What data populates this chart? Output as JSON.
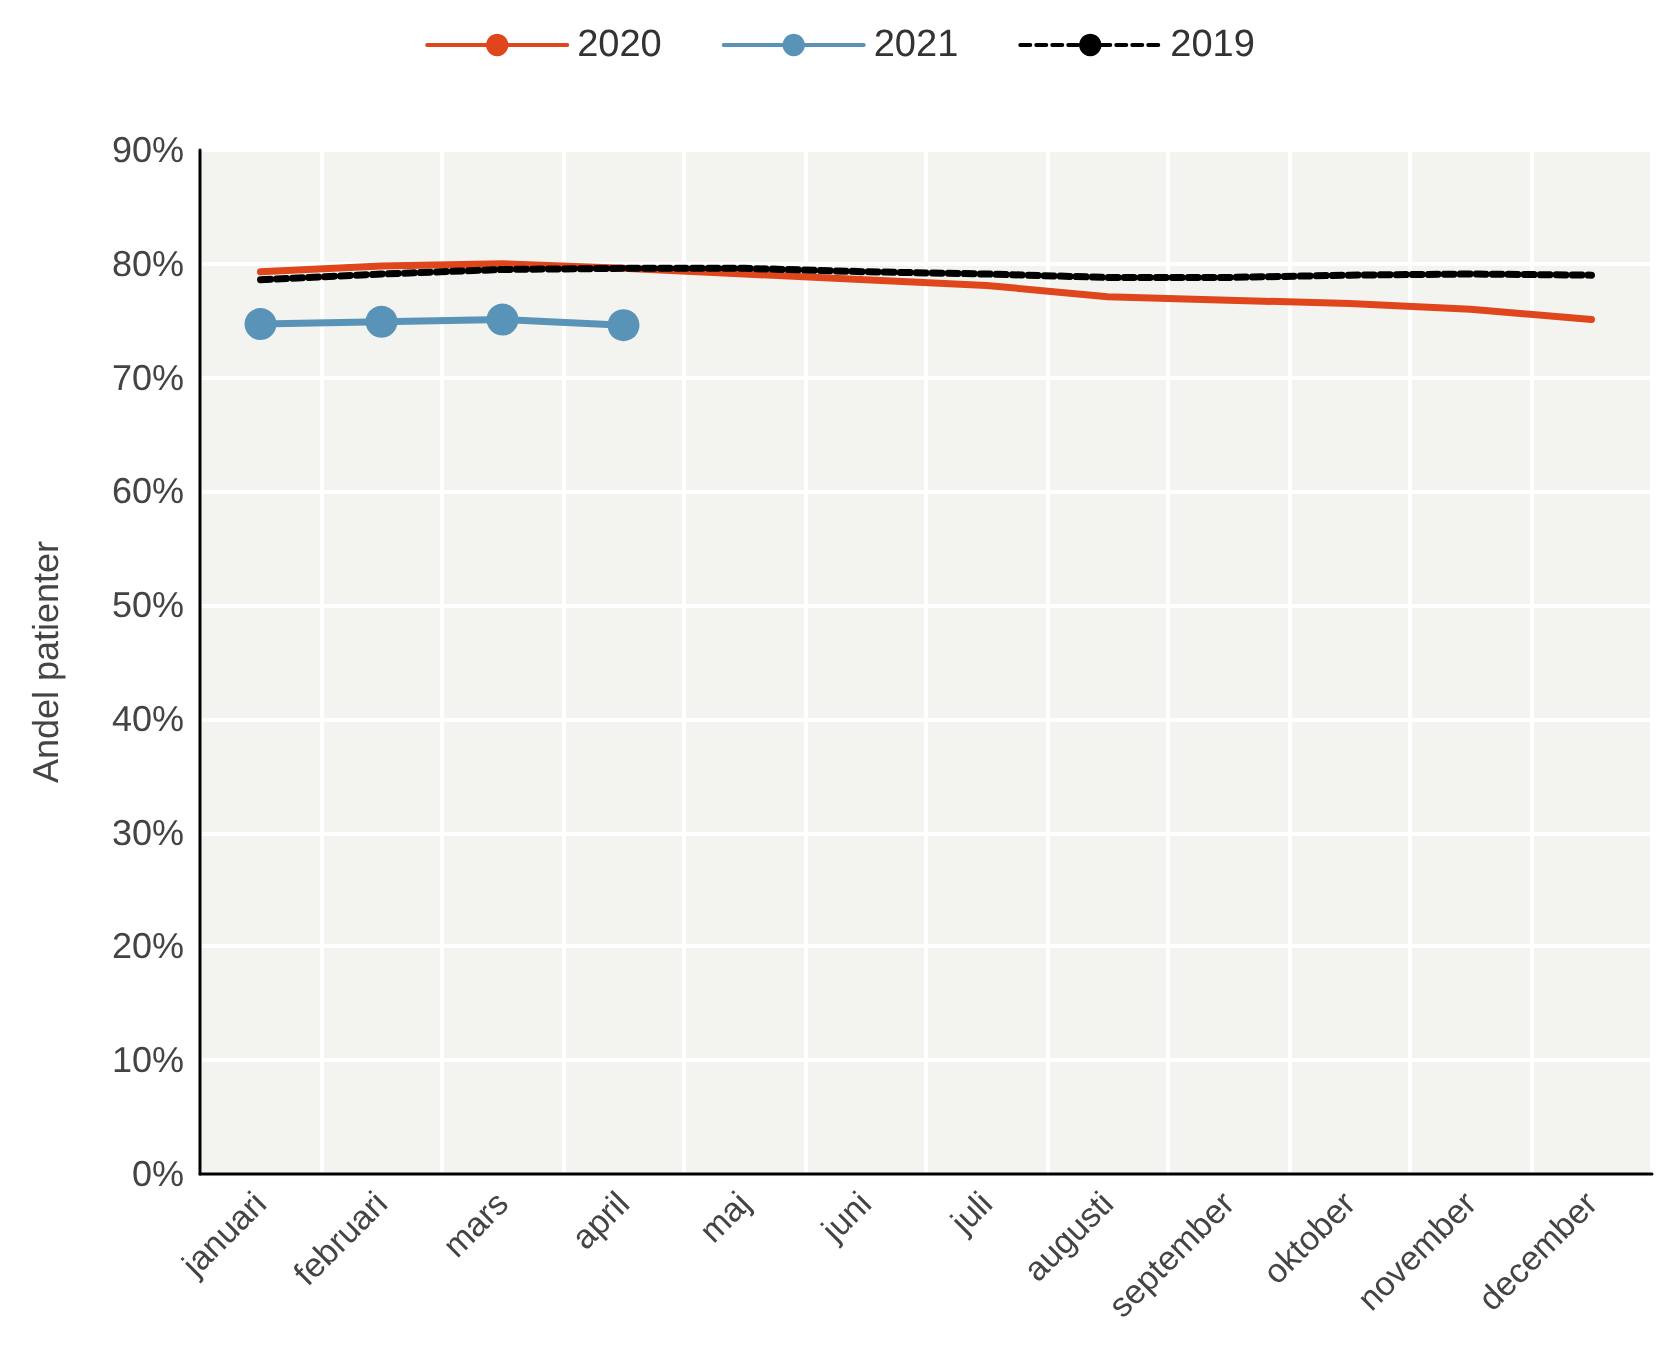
{
  "chart_data": {
    "type": "line",
    "ylabel": "Andel patienter",
    "categories": [
      "januari",
      "februari",
      "mars",
      "april",
      "maj",
      "juni",
      "juli",
      "augusti",
      "september",
      "oktober",
      "november",
      "december"
    ],
    "series": [
      {
        "name": "2020",
        "color": "#e0461c",
        "marker": "none",
        "line_style": "solid",
        "values": [
          79.3,
          79.8,
          80.0,
          79.6,
          79.1,
          78.6,
          78.1,
          77.1,
          76.8,
          76.5,
          76.0,
          75.1
        ]
      },
      {
        "name": "2021",
        "color": "#5a93b8",
        "marker": "circle",
        "line_style": "solid",
        "values": [
          74.7,
          74.9,
          75.1,
          74.6,
          null,
          null,
          null,
          null,
          null,
          null,
          null,
          null
        ]
      },
      {
        "name": "2019",
        "color": "#000000",
        "marker": "none",
        "line_style": "dashed",
        "values": [
          78.6,
          79.1,
          79.5,
          79.6,
          79.6,
          79.3,
          79.1,
          78.8,
          78.8,
          79.0,
          79.1,
          79.0
        ]
      }
    ],
    "ylim": [
      0,
      90
    ],
    "yticks": [
      {
        "value": 0,
        "label": "0%"
      },
      {
        "value": 10,
        "label": "10%"
      },
      {
        "value": 20,
        "label": "20%"
      },
      {
        "value": 30,
        "label": "30%"
      },
      {
        "value": 40,
        "label": "40%"
      },
      {
        "value": 50,
        "label": "50%"
      },
      {
        "value": 60,
        "label": "60%"
      },
      {
        "value": 70,
        "label": "70%"
      },
      {
        "value": 80,
        "label": "80%"
      },
      {
        "value": 90,
        "label": "90%"
      }
    ],
    "grid": true,
    "legend": "top"
  }
}
